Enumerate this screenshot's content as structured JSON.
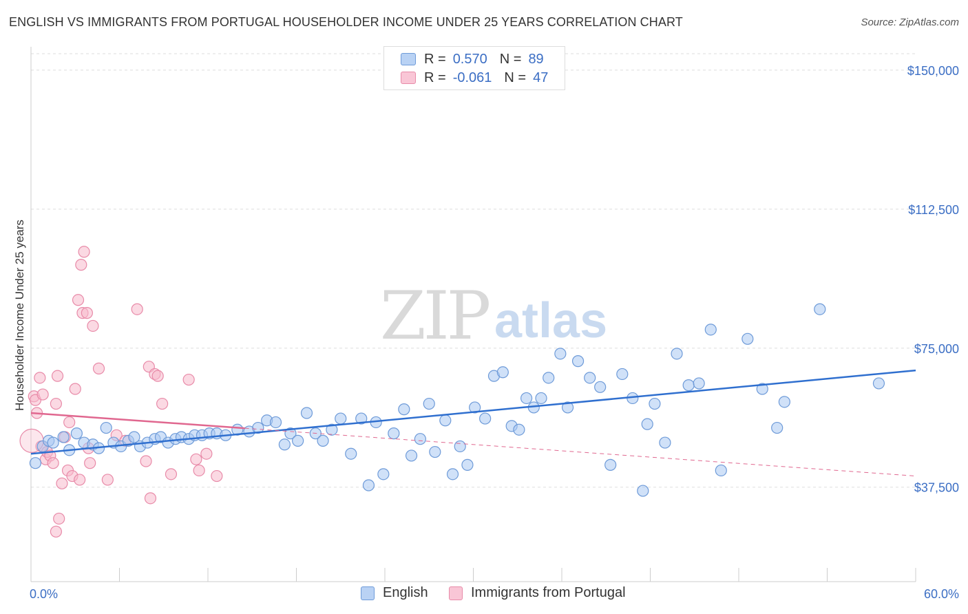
{
  "title": "ENGLISH VS IMMIGRANTS FROM PORTUGAL HOUSEHOLDER INCOME UNDER 25 YEARS CORRELATION CHART",
  "source": "Source: ZipAtlas.com",
  "watermark": {
    "zip": "ZIP",
    "atlas": "atlas"
  },
  "legend": {
    "rows": [
      {
        "r_label": "R =",
        "r_value": "0.570",
        "n_label": "N =",
        "n_value": "89"
      },
      {
        "r_label": "R =",
        "r_value": "-0.061",
        "n_label": "N =",
        "n_value": "47"
      }
    ]
  },
  "bottom_legend": [
    "English",
    "Immigrants from Portugal"
  ],
  "colors": {
    "blue_fill": "#a9c8f2",
    "blue_stroke": "#6d9ad8",
    "blue_line": "#2f6fcf",
    "pink_fill": "#f7b9cc",
    "pink_stroke": "#e88aa8",
    "pink_line": "#e0678f",
    "tick_text": "#3b6ec4",
    "grid": "#dddddd"
  },
  "chart_data": {
    "type": "scatter",
    "title": "ENGLISH VS IMMIGRANTS FROM PORTUGAL HOUSEHOLDER INCOME UNDER 25 YEARS CORRELATION CHART",
    "xlabel": "",
    "ylabel": "Householder Income Under 25 years",
    "xlim": [
      0,
      60
    ],
    "ylim": [
      12000,
      155000
    ],
    "x_tick_labels": [
      "0.0%",
      "60.0%"
    ],
    "y_ticks": [
      37500,
      75000,
      112500,
      150000
    ],
    "y_tick_labels": [
      "$37,500",
      "$75,000",
      "$112,500",
      "$150,000"
    ],
    "grid": true,
    "series": [
      {
        "name": "English",
        "r": 0.57,
        "n": 89,
        "trend": {
          "x": [
            0,
            60
          ],
          "y": [
            46500,
            69000
          ]
        },
        "points": [
          [
            0.3,
            44000
          ],
          [
            0.8,
            48500
          ],
          [
            1.2,
            50000
          ],
          [
            1.5,
            49500
          ],
          [
            2.2,
            51000
          ],
          [
            2.6,
            47500
          ],
          [
            3.1,
            52000
          ],
          [
            3.6,
            49500
          ],
          [
            4.2,
            49000
          ],
          [
            4.6,
            48000
          ],
          [
            5.1,
            53500
          ],
          [
            5.6,
            49500
          ],
          [
            6.1,
            48500
          ],
          [
            6.6,
            50000
          ],
          [
            7.0,
            51000
          ],
          [
            7.4,
            48500
          ],
          [
            7.9,
            49500
          ],
          [
            8.4,
            50500
          ],
          [
            8.8,
            51000
          ],
          [
            9.3,
            49500
          ],
          [
            9.8,
            50500
          ],
          [
            10.2,
            51000
          ],
          [
            10.7,
            50500
          ],
          [
            11.1,
            51500
          ],
          [
            11.6,
            51500
          ],
          [
            12.1,
            52000
          ],
          [
            12.6,
            52000
          ],
          [
            13.2,
            51500
          ],
          [
            14.0,
            53000
          ],
          [
            14.8,
            52500
          ],
          [
            15.4,
            53500
          ],
          [
            16.0,
            55500
          ],
          [
            16.6,
            55000
          ],
          [
            17.2,
            49000
          ],
          [
            17.6,
            52000
          ],
          [
            18.1,
            50000
          ],
          [
            18.7,
            57500
          ],
          [
            19.3,
            52000
          ],
          [
            19.8,
            50000
          ],
          [
            20.4,
            53000
          ],
          [
            21.0,
            56000
          ],
          [
            21.7,
            46500
          ],
          [
            22.4,
            56000
          ],
          [
            22.9,
            38000
          ],
          [
            23.4,
            55000
          ],
          [
            23.9,
            41000
          ],
          [
            24.6,
            52000
          ],
          [
            25.3,
            58500
          ],
          [
            25.8,
            46000
          ],
          [
            26.4,
            50500
          ],
          [
            27.0,
            60000
          ],
          [
            27.4,
            47000
          ],
          [
            28.1,
            55500
          ],
          [
            28.6,
            41000
          ],
          [
            29.1,
            48500
          ],
          [
            29.6,
            43500
          ],
          [
            30.1,
            59000
          ],
          [
            30.8,
            56000
          ],
          [
            31.4,
            67500
          ],
          [
            32.0,
            68500
          ],
          [
            32.6,
            54000
          ],
          [
            33.1,
            53000
          ],
          [
            33.6,
            61500
          ],
          [
            34.1,
            59000
          ],
          [
            34.6,
            61500
          ],
          [
            35.1,
            67000
          ],
          [
            35.9,
            73500
          ],
          [
            36.4,
            59000
          ],
          [
            37.1,
            71500
          ],
          [
            37.9,
            67000
          ],
          [
            38.6,
            64500
          ],
          [
            39.3,
            43500
          ],
          [
            40.1,
            68000
          ],
          [
            40.8,
            61500
          ],
          [
            41.5,
            36500
          ],
          [
            41.8,
            54500
          ],
          [
            42.3,
            60000
          ],
          [
            43.0,
            49500
          ],
          [
            43.8,
            73500
          ],
          [
            44.6,
            65000
          ],
          [
            45.3,
            65500
          ],
          [
            46.1,
            80000
          ],
          [
            46.8,
            42000
          ],
          [
            48.6,
            77500
          ],
          [
            49.6,
            64000
          ],
          [
            50.6,
            53500
          ],
          [
            51.1,
            60500
          ],
          [
            53.5,
            85500
          ],
          [
            57.5,
            65500
          ]
        ]
      },
      {
        "name": "Immigrants from Portugal",
        "r": -0.061,
        "n": 47,
        "trend": {
          "x": [
            0,
            60
          ],
          "y": [
            57500,
            40500
          ]
        },
        "trend_solid_to_x": 14.5,
        "points": [
          [
            0.2,
            62000
          ],
          [
            0.3,
            61000
          ],
          [
            0.4,
            57500
          ],
          [
            0.6,
            67000
          ],
          [
            0.7,
            48500
          ],
          [
            0.8,
            62500
          ],
          [
            1.0,
            45000
          ],
          [
            1.1,
            47000
          ],
          [
            1.3,
            46000
          ],
          [
            1.5,
            44000
          ],
          [
            1.7,
            60000
          ],
          [
            1.8,
            67500
          ],
          [
            1.9,
            29000
          ],
          [
            1.7,
            25500
          ],
          [
            2.1,
            38500
          ],
          [
            2.3,
            51000
          ],
          [
            2.5,
            42000
          ],
          [
            2.6,
            55000
          ],
          [
            2.8,
            40500
          ],
          [
            3.0,
            64000
          ],
          [
            3.2,
            88000
          ],
          [
            3.3,
            39500
          ],
          [
            3.4,
            97500
          ],
          [
            3.5,
            84500
          ],
          [
            3.6,
            101000
          ],
          [
            3.8,
            84500
          ],
          [
            3.9,
            48000
          ],
          [
            4.0,
            44000
          ],
          [
            4.2,
            81000
          ],
          [
            4.6,
            69500
          ],
          [
            5.2,
            39500
          ],
          [
            5.8,
            51500
          ],
          [
            6.4,
            50000
          ],
          [
            7.2,
            85500
          ],
          [
            7.8,
            44500
          ],
          [
            8.0,
            70000
          ],
          [
            8.1,
            34500
          ],
          [
            8.4,
            68000
          ],
          [
            8.6,
            67500
          ],
          [
            8.9,
            60000
          ],
          [
            9.5,
            41000
          ],
          [
            10.7,
            66500
          ],
          [
            11.2,
            45000
          ],
          [
            11.4,
            42000
          ],
          [
            11.9,
            46500
          ],
          [
            12.6,
            40500
          ],
          [
            0.05,
            50000
          ]
        ]
      }
    ]
  }
}
